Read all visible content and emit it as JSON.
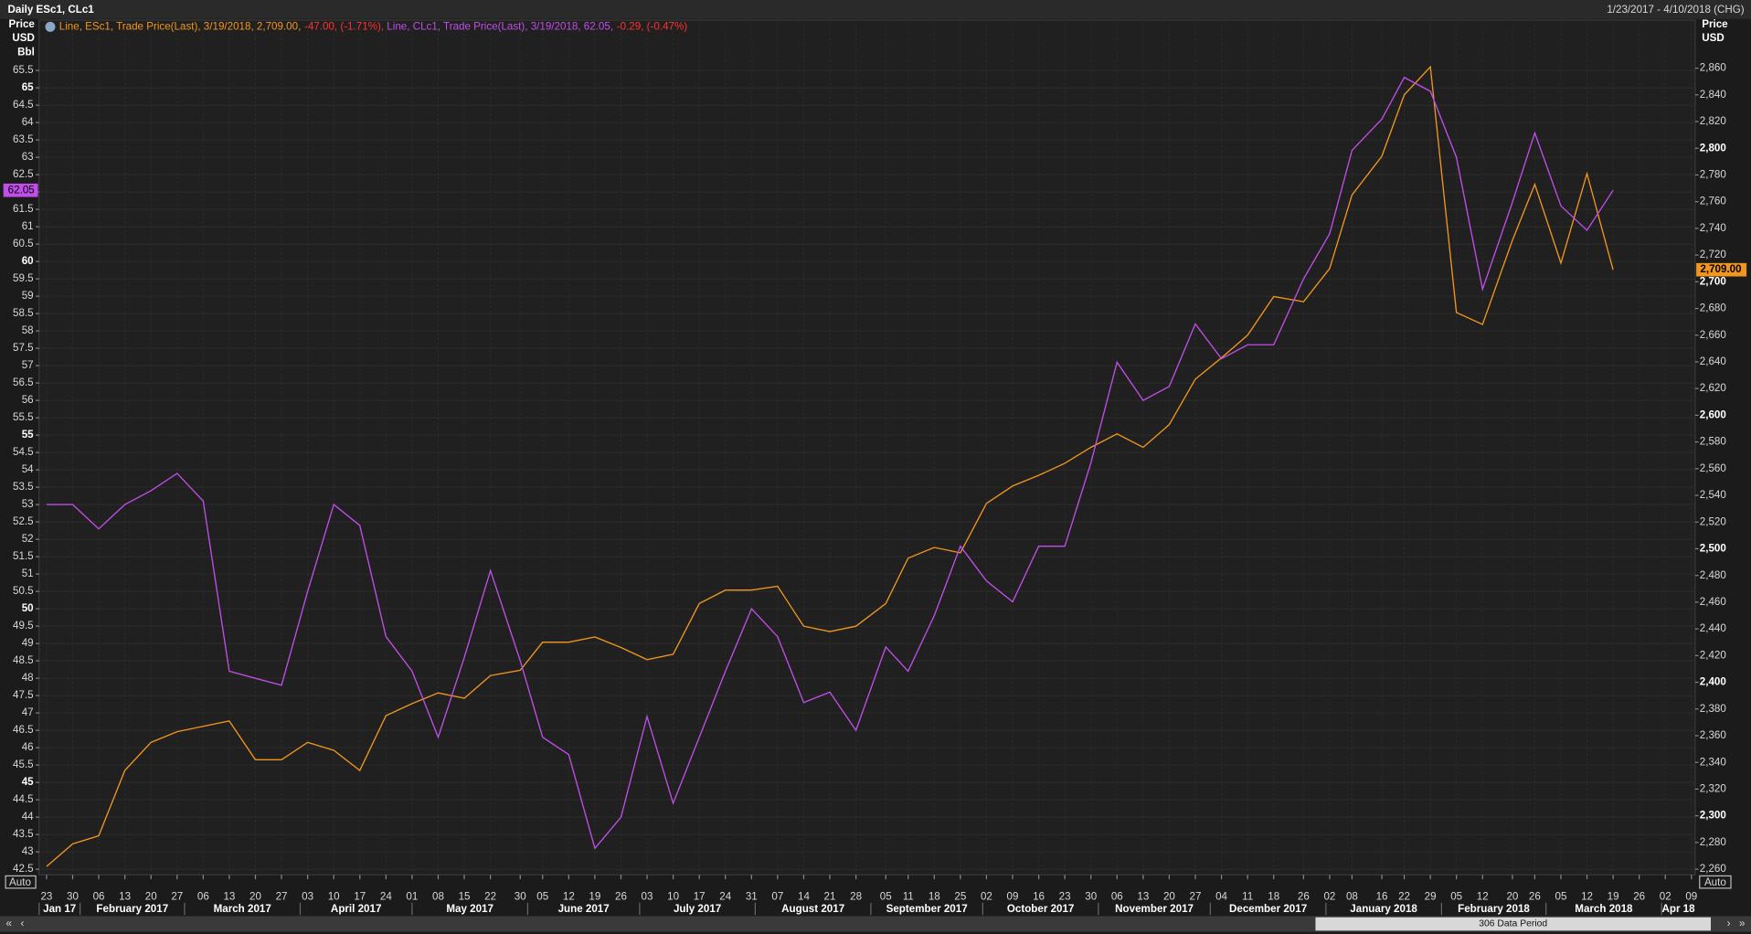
{
  "chart_data": {
    "type": "line",
    "title": "Daily ESc1, CLc1",
    "date_range": "1/23/2017 - 4/10/2018 (CHG)",
    "y_axis_title": [
      "Price",
      "USD",
      "Bbl"
    ],
    "y2_axis_title": [
      "Price",
      "USD"
    ],
    "auto_label": "Auto",
    "data_period": "306 Data Period",
    "change_color": "#ff3030",
    "grid": true,
    "x": [
      "2017-01-23",
      "2017-01-30",
      "2017-02-06",
      "2017-02-13",
      "2017-02-20",
      "2017-02-27",
      "2017-03-06",
      "2017-03-13",
      "2017-03-20",
      "2017-03-27",
      "2017-04-03",
      "2017-04-10",
      "2017-04-17",
      "2017-04-24",
      "2017-05-01",
      "2017-05-08",
      "2017-05-15",
      "2017-05-22",
      "2017-05-30",
      "2017-06-05",
      "2017-06-12",
      "2017-06-19",
      "2017-06-26",
      "2017-07-03",
      "2017-07-10",
      "2017-07-17",
      "2017-07-24",
      "2017-07-31",
      "2017-08-07",
      "2017-08-14",
      "2017-08-21",
      "2017-08-28",
      "2017-09-05",
      "2017-09-11",
      "2017-09-18",
      "2017-09-25",
      "2017-10-02",
      "2017-10-09",
      "2017-10-16",
      "2017-10-23",
      "2017-10-30",
      "2017-11-06",
      "2017-11-13",
      "2017-11-20",
      "2017-11-27",
      "2017-12-04",
      "2017-12-11",
      "2017-12-18",
      "2017-12-26",
      "2018-01-02",
      "2018-01-08",
      "2018-01-16",
      "2018-01-22",
      "2018-01-29",
      "2018-02-05",
      "2018-02-12",
      "2018-02-20",
      "2018-02-26",
      "2018-03-05",
      "2018-03-12",
      "2018-03-19"
    ],
    "series": [
      {
        "name": "Line, ESc1, Trade Price(Last), 3/19/2018, 2,709.00,",
        "change": "-47.00, (-1.71%),",
        "last_label": "2,709.00",
        "color": "#f0961e",
        "axis": "y2",
        "values": [
          2262,
          2279,
          2285,
          2334,
          2355,
          2363,
          2367,
          2371,
          2342,
          2342,
          2355,
          2349,
          2334,
          2375,
          2384,
          2392,
          2388,
          2405,
          2409,
          2430,
          2430,
          2434,
          2426,
          2417,
          2421,
          2459,
          2469,
          2469,
          2472,
          2442,
          2438,
          2442,
          2459,
          2493,
          2501,
          2497,
          2534,
          2547,
          2555,
          2564,
          2576,
          2586,
          2576,
          2593,
          2627,
          2643,
          2660,
          2689,
          2685,
          2710,
          2765,
          2794,
          2840,
          2861,
          2677,
          2668,
          2731,
          2773,
          2714,
          2781,
          2709
        ]
      },
      {
        "name": "Line, CLc1, Trade Price(Last), 3/19/2018, 62.05,",
        "change": "-0.29, (-0.47%)",
        "last_label": "62.05",
        "color": "#c04ee8",
        "axis": "y",
        "values": [
          53.0,
          53.0,
          52.3,
          53.0,
          53.4,
          53.9,
          53.1,
          48.2,
          48.0,
          47.8,
          50.5,
          53.0,
          52.4,
          49.2,
          48.2,
          46.3,
          48.6,
          51.1,
          48.5,
          46.3,
          45.8,
          43.1,
          44.0,
          46.9,
          44.4,
          46.3,
          48.2,
          50.0,
          49.2,
          47.3,
          47.6,
          46.5,
          48.9,
          48.2,
          49.8,
          51.8,
          50.8,
          50.2,
          51.8,
          51.8,
          54.2,
          57.1,
          56.0,
          56.4,
          58.2,
          57.2,
          57.6,
          57.6,
          59.5,
          60.8,
          63.2,
          64.1,
          65.3,
          64.9,
          63.0,
          59.2,
          61.7,
          63.7,
          61.6,
          60.9,
          62.05
        ]
      }
    ],
    "xlim": [
      "2017-01-21",
      "2018-04-10"
    ],
    "xticks": [
      {
        "value": "2017-01-23",
        "label": "23"
      },
      {
        "value": "2017-01-30",
        "label": "30"
      },
      {
        "value": "2017-02-06",
        "label": "06"
      },
      {
        "value": "2017-02-13",
        "label": "13"
      },
      {
        "value": "2017-02-20",
        "label": "20"
      },
      {
        "value": "2017-02-27",
        "label": "27"
      },
      {
        "value": "2017-03-06",
        "label": "06"
      },
      {
        "value": "2017-03-13",
        "label": "13"
      },
      {
        "value": "2017-03-20",
        "label": "20"
      },
      {
        "value": "2017-03-27",
        "label": "27"
      },
      {
        "value": "2017-04-03",
        "label": "03"
      },
      {
        "value": "2017-04-10",
        "label": "10"
      },
      {
        "value": "2017-04-17",
        "label": "17"
      },
      {
        "value": "2017-04-24",
        "label": "24"
      },
      {
        "value": "2017-05-01",
        "label": "01"
      },
      {
        "value": "2017-05-08",
        "label": "08"
      },
      {
        "value": "2017-05-15",
        "label": "15"
      },
      {
        "value": "2017-05-22",
        "label": "22"
      },
      {
        "value": "2017-05-30",
        "label": "30"
      },
      {
        "value": "2017-06-05",
        "label": "05"
      },
      {
        "value": "2017-06-12",
        "label": "12"
      },
      {
        "value": "2017-06-19",
        "label": "19"
      },
      {
        "value": "2017-06-26",
        "label": "26"
      },
      {
        "value": "2017-07-03",
        "label": "03"
      },
      {
        "value": "2017-07-10",
        "label": "10"
      },
      {
        "value": "2017-07-17",
        "label": "17"
      },
      {
        "value": "2017-07-24",
        "label": "24"
      },
      {
        "value": "2017-07-31",
        "label": "31"
      },
      {
        "value": "2017-08-07",
        "label": "07"
      },
      {
        "value": "2017-08-14",
        "label": "14"
      },
      {
        "value": "2017-08-21",
        "label": "21"
      },
      {
        "value": "2017-08-28",
        "label": "28"
      },
      {
        "value": "2017-09-05",
        "label": "05"
      },
      {
        "value": "2017-09-11",
        "label": "11"
      },
      {
        "value": "2017-09-18",
        "label": "18"
      },
      {
        "value": "2017-09-25",
        "label": "25"
      },
      {
        "value": "2017-10-02",
        "label": "02"
      },
      {
        "value": "2017-10-09",
        "label": "09"
      },
      {
        "value": "2017-10-16",
        "label": "16"
      },
      {
        "value": "2017-10-23",
        "label": "23"
      },
      {
        "value": "2017-10-30",
        "label": "30"
      },
      {
        "value": "2017-11-06",
        "label": "06"
      },
      {
        "value": "2017-11-13",
        "label": "13"
      },
      {
        "value": "2017-11-20",
        "label": "20"
      },
      {
        "value": "2017-11-27",
        "label": "27"
      },
      {
        "value": "2017-12-04",
        "label": "04"
      },
      {
        "value": "2017-12-11",
        "label": "11"
      },
      {
        "value": "2017-12-18",
        "label": "18"
      },
      {
        "value": "2017-12-26",
        "label": "26"
      },
      {
        "value": "2018-01-02",
        "label": "02"
      },
      {
        "value": "2018-01-08",
        "label": "08"
      },
      {
        "value": "2018-01-16",
        "label": "16"
      },
      {
        "value": "2018-01-22",
        "label": "22"
      },
      {
        "value": "2018-01-29",
        "label": "29"
      },
      {
        "value": "2018-02-05",
        "label": "05"
      },
      {
        "value": "2018-02-12",
        "label": "12"
      },
      {
        "value": "2018-02-20",
        "label": "20"
      },
      {
        "value": "2018-02-26",
        "label": "26"
      },
      {
        "value": "2018-03-05",
        "label": "05"
      },
      {
        "value": "2018-03-12",
        "label": "12"
      },
      {
        "value": "2018-03-19",
        "label": "19"
      },
      {
        "value": "2018-03-26",
        "label": "26"
      },
      {
        "value": "2018-04-02",
        "label": "02"
      },
      {
        "value": "2018-04-09",
        "label": "09"
      }
    ],
    "month_labels": [
      {
        "value": "2017-01-01",
        "label": "Jan 17"
      },
      {
        "value": "2017-02-01",
        "label": "February 2017"
      },
      {
        "value": "2017-03-01",
        "label": "March 2017"
      },
      {
        "value": "2017-04-01",
        "label": "April 2017"
      },
      {
        "value": "2017-05-01",
        "label": "May 2017"
      },
      {
        "value": "2017-06-01",
        "label": "June 2017"
      },
      {
        "value": "2017-07-01",
        "label": "July 2017"
      },
      {
        "value": "2017-08-01",
        "label": "August 2017"
      },
      {
        "value": "2017-09-01",
        "label": "September 2017"
      },
      {
        "value": "2017-10-01",
        "label": "October 2017"
      },
      {
        "value": "2017-11-01",
        "label": "November 2017"
      },
      {
        "value": "2017-12-01",
        "label": "December 2017"
      },
      {
        "value": "2018-01-01",
        "label": "January 2018"
      },
      {
        "value": "2018-02-01",
        "label": "February 2018"
      },
      {
        "value": "2018-03-01",
        "label": "March 2018"
      },
      {
        "value": "2018-04-01",
        "label": "Apr 18"
      }
    ],
    "ylim": [
      42.34,
      66.95
    ],
    "yticks": [
      42.5,
      43,
      43.5,
      44,
      44.5,
      45,
      45.5,
      46,
      46.5,
      47,
      47.5,
      48,
      48.5,
      49,
      49.5,
      50,
      50.5,
      51,
      51.5,
      52,
      52.5,
      53,
      53.5,
      54,
      54.5,
      55,
      55.5,
      56,
      56.5,
      57,
      57.5,
      58,
      58.5,
      59,
      59.5,
      60,
      60.5,
      61,
      61.5,
      62,
      62.5,
      63,
      63.5,
      64,
      64.5,
      65,
      65.5
    ],
    "y2lim": [
      2255.8,
      2896
    ],
    "y2ticks": [
      {
        "value": 2260,
        "label": "2,260"
      },
      {
        "value": 2280,
        "label": "2,280"
      },
      {
        "value": 2300,
        "label": "2,300"
      },
      {
        "value": 2320,
        "label": "2,320"
      },
      {
        "value": 2340,
        "label": "2,340"
      },
      {
        "value": 2360,
        "label": "2,360"
      },
      {
        "value": 2380,
        "label": "2,380"
      },
      {
        "value": 2400,
        "label": "2,400"
      },
      {
        "value": 2420,
        "label": "2,420"
      },
      {
        "value": 2440,
        "label": "2,440"
      },
      {
        "value": 2460,
        "label": "2,460"
      },
      {
        "value": 2480,
        "label": "2,480"
      },
      {
        "value": 2500,
        "label": "2,500"
      },
      {
        "value": 2520,
        "label": "2,520"
      },
      {
        "value": 2540,
        "label": "2,540"
      },
      {
        "value": 2560,
        "label": "2,560"
      },
      {
        "value": 2580,
        "label": "2,580"
      },
      {
        "value": 2600,
        "label": "2,600"
      },
      {
        "value": 2620,
        "label": "2,620"
      },
      {
        "value": 2640,
        "label": "2,640"
      },
      {
        "value": 2660,
        "label": "2,660"
      },
      {
        "value": 2680,
        "label": "2,680"
      },
      {
        "value": 2700,
        "label": "2,700"
      },
      {
        "value": 2720,
        "label": "2,720"
      },
      {
        "value": 2740,
        "label": "2,740"
      },
      {
        "value": 2760,
        "label": "2,760"
      },
      {
        "value": 2780,
        "label": "2,780"
      },
      {
        "value": 2800,
        "label": "2,800"
      },
      {
        "value": 2820,
        "label": "2,820"
      },
      {
        "value": 2840,
        "label": "2,840"
      },
      {
        "value": 2860,
        "label": "2,860"
      }
    ]
  }
}
